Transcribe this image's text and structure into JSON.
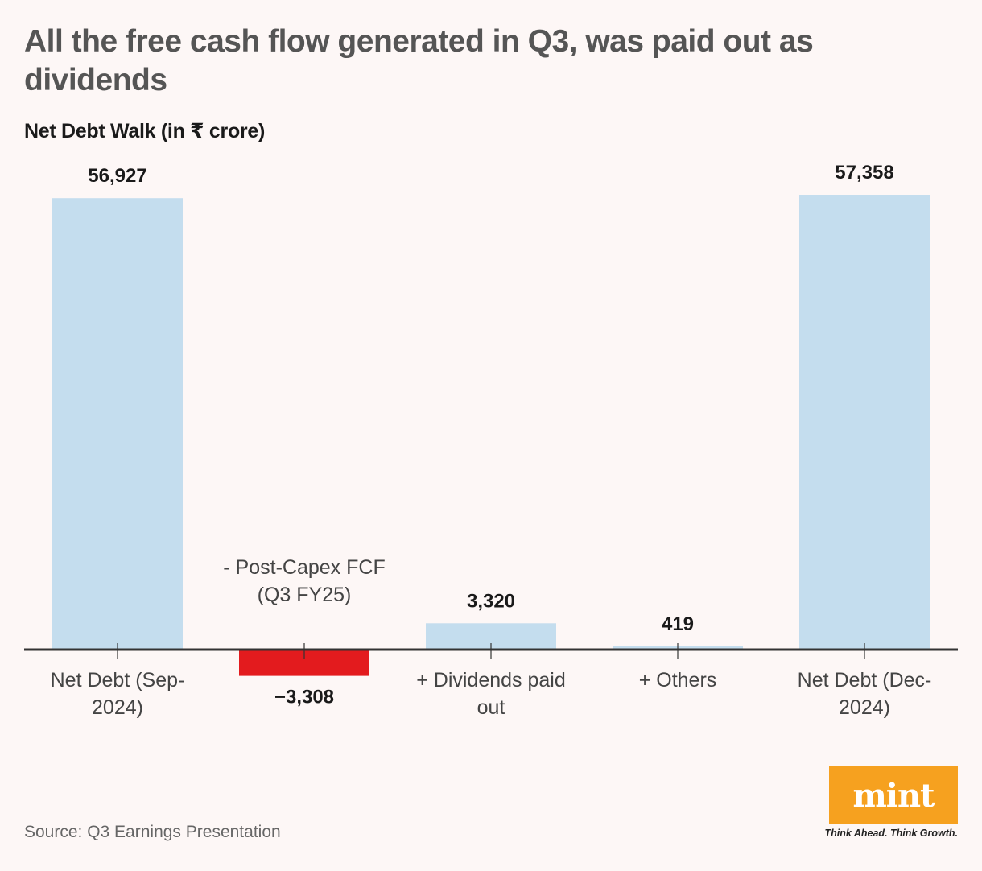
{
  "title": "All the free cash flow generated in Q3, was paid out as dividends",
  "subtitle": "Net Debt Walk (in ₹ crore)",
  "source": "Source: Q3 Earnings Presentation",
  "brand": {
    "logo_text": "mint",
    "tagline": "Think Ahead. Think Growth.",
    "logo_color": "#f6a11f"
  },
  "colors": {
    "positive_bar": "#c4ddee",
    "negative_bar": "#e31b1e",
    "axis": "#333333"
  },
  "chart_data": {
    "type": "bar",
    "subtype": "waterfall-style (bars drawn from zero baseline)",
    "title": "Net Debt Walk (in ₹ crore)",
    "xlabel": "",
    "ylabel": "",
    "grid": false,
    "legend": "none",
    "ylim": [
      -3308,
      57358
    ],
    "categories": [
      [
        "Net Debt (Sep-",
        "2024)"
      ],
      [
        "- Post-Capex FCF",
        "(Q3 FY25)"
      ],
      [
        "+ Dividends paid",
        "out"
      ],
      [
        "+ Others"
      ],
      [
        "Net Debt (Dec-",
        "2024)"
      ]
    ],
    "values": [
      56927,
      -3308,
      3320,
      419,
      57358
    ],
    "value_labels": [
      "56,927",
      "−3,308",
      "3,320",
      "419",
      "57,358"
    ]
  }
}
